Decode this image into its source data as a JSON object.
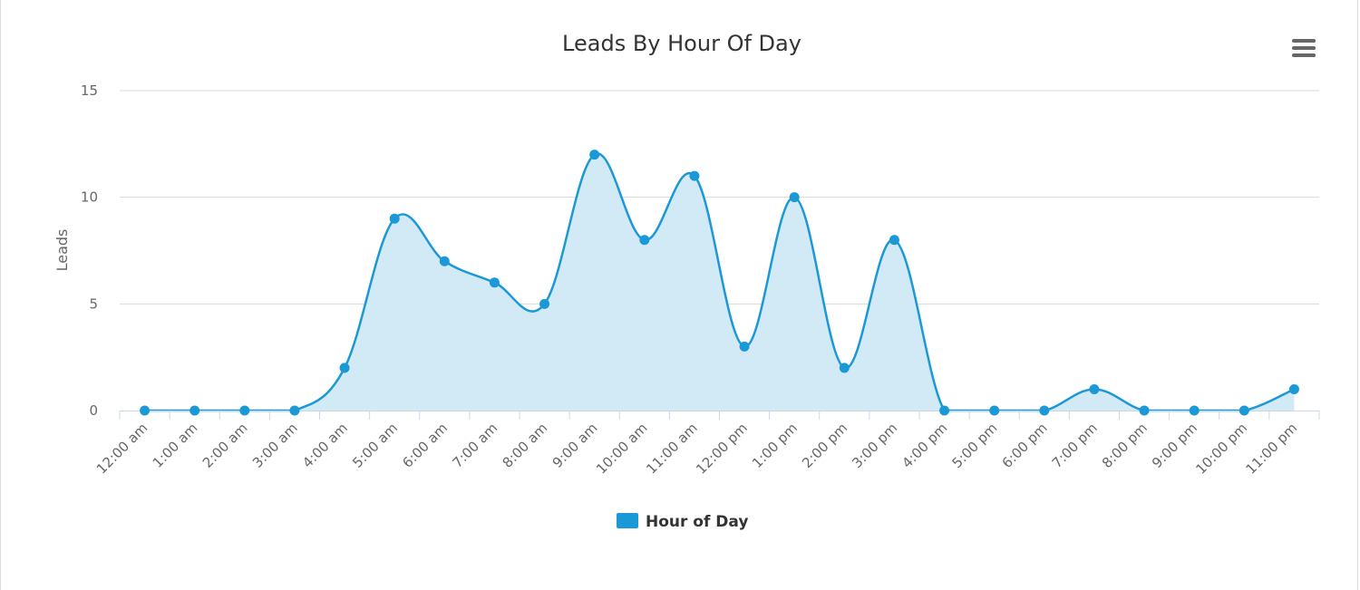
{
  "chart_data": {
    "type": "area",
    "title": "Leads By Hour Of Day",
    "xlabel": "",
    "ylabel": "Leads",
    "ylim": [
      0,
      15
    ],
    "yticks": [
      0,
      5,
      10,
      15
    ],
    "categories": [
      "12:00 am",
      "1:00 am",
      "2:00 am",
      "3:00 am",
      "4:00 am",
      "5:00 am",
      "6:00 am",
      "7:00 am",
      "8:00 am",
      "9:00 am",
      "10:00 am",
      "11:00 am",
      "12:00 pm",
      "1:00 pm",
      "2:00 pm",
      "3:00 pm",
      "4:00 pm",
      "5:00 pm",
      "6:00 pm",
      "7:00 pm",
      "8:00 pm",
      "9:00 pm",
      "10:00 pm",
      "11:00 pm"
    ],
    "series": [
      {
        "name": "Hour of Day",
        "values": [
          0,
          0,
          0,
          0,
          2,
          9,
          7,
          6,
          5,
          12,
          8,
          11,
          3,
          10,
          2,
          8,
          0,
          0,
          0,
          1,
          0,
          0,
          0,
          1
        ]
      }
    ],
    "legend": "bottom-center",
    "colors": {
      "line": "#1b98d6",
      "fill": "#d2e9f6",
      "grid": "#d9d9d9",
      "axis": "#ccd6eb"
    }
  },
  "menu": {
    "icon": "hamburger-menu-icon"
  }
}
